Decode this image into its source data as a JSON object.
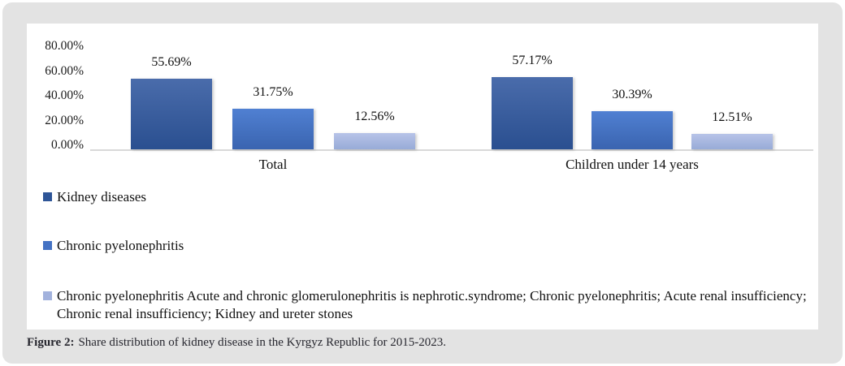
{
  "chart_data": {
    "type": "bar",
    "categories": [
      "Total",
      "Children under 14 years"
    ],
    "series": [
      {
        "name": "Kidney diseases",
        "values": [
          55.69,
          57.17
        ],
        "swatch": "#2e5597",
        "gradient": [
          "#4a6cab",
          "#2a4f90"
        ]
      },
      {
        "name": "Chronic pyelonephritis",
        "values": [
          31.75,
          30.39
        ],
        "swatch": "#4472c4",
        "gradient": [
          "#5080d2",
          "#3a64b0"
        ]
      },
      {
        "name": "Chronic pyelonephritis Acute and chronic glomerulonephritis is nephrotic.syndrome; Chronic pyelonephritis; Acute renal insufficiency; Chronic renal insufficiency; Kidney and ureter stones",
        "values": [
          12.56,
          12.51
        ],
        "swatch": "#a2b2dd",
        "gradient": [
          "#b7c3e8",
          "#98abd7"
        ]
      }
    ],
    "yticks": [
      "80.00%",
      "60.00%",
      "40.00%",
      "20.00%",
      "0.00%"
    ],
    "ylim": [
      0,
      80
    ],
    "grid": false,
    "legend_position": "bottom-left",
    "value_label_format": "0.00%"
  },
  "caption": {
    "prefix": "Figure 2:",
    "text": "Share distribution of kidney disease in the Kyrgyz Republic for 2015-2023."
  },
  "colors": {
    "card_background": "#e3e3e3",
    "panel_background": "#ffffff",
    "axis_line": "#d9d9d9",
    "caption_text": "#26262e"
  }
}
